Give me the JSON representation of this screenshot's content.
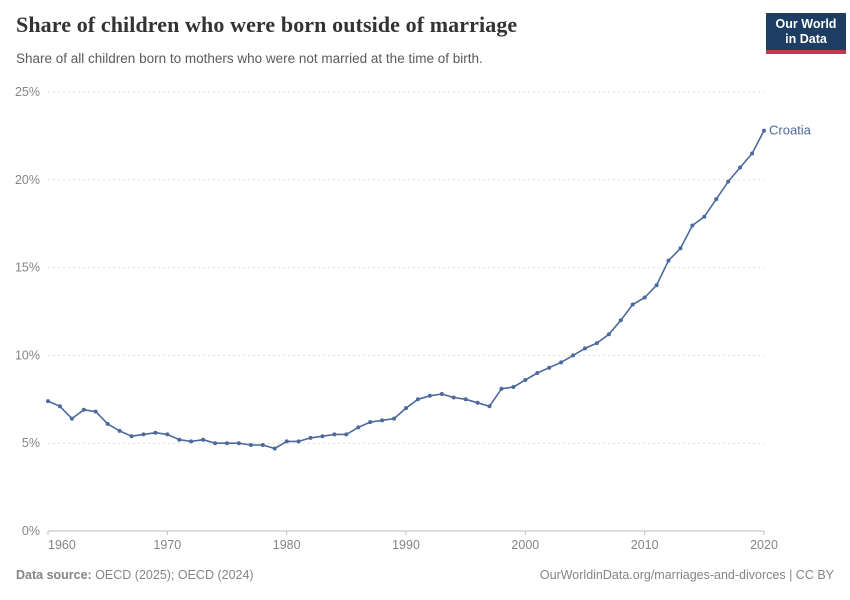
{
  "header": {
    "title": "Share of children who were born outside of marriage",
    "subtitle": "Share of all children born to mothers who were not married at the time of birth.",
    "logo": {
      "line1": "Our World",
      "line2": "in Data"
    }
  },
  "chart_data": {
    "type": "line",
    "title": "Share of children who were born outside of marriage",
    "entity_label": "Croatia",
    "xlabel": "",
    "ylabel": "",
    "xlim": [
      1960,
      2020
    ],
    "ylim": [
      0,
      25
    ],
    "grid": "horizontal dashed gridlines on",
    "legend_position": "end-of-line label",
    "xtick_values": [
      1960,
      1970,
      1980,
      1990,
      2000,
      2010,
      2020
    ],
    "xtick_labels": [
      "1960",
      "1970",
      "1980",
      "1990",
      "2000",
      "2010",
      "2020"
    ],
    "ytick_values": [
      0,
      5,
      10,
      15,
      20,
      25
    ],
    "ytick_labels": [
      "0%",
      "5%",
      "10%",
      "15%",
      "20%",
      "25%"
    ],
    "years": [
      1960,
      1961,
      1962,
      1963,
      1964,
      1965,
      1966,
      1967,
      1968,
      1969,
      1970,
      1971,
      1972,
      1973,
      1974,
      1975,
      1976,
      1977,
      1978,
      1979,
      1980,
      1981,
      1982,
      1983,
      1984,
      1985,
      1986,
      1987,
      1988,
      1989,
      1990,
      1991,
      1992,
      1993,
      1994,
      1995,
      1996,
      1997,
      1998,
      1999,
      2000,
      2001,
      2002,
      2003,
      2004,
      2005,
      2006,
      2007,
      2008,
      2009,
      2010,
      2011,
      2012,
      2013,
      2014,
      2015,
      2016,
      2017,
      2018,
      2019,
      2020
    ],
    "series": [
      {
        "name": "Croatia",
        "values": [
          7.4,
          7.1,
          6.4,
          6.9,
          6.8,
          6.1,
          5.7,
          5.4,
          5.5,
          5.6,
          5.5,
          5.2,
          5.1,
          5.2,
          5.0,
          5.0,
          5.0,
          4.9,
          4.9,
          4.7,
          5.1,
          5.1,
          5.3,
          5.4,
          5.5,
          5.5,
          5.9,
          6.2,
          6.3,
          6.4,
          7.0,
          7.5,
          7.7,
          7.8,
          7.6,
          7.5,
          7.3,
          7.1,
          8.1,
          8.2,
          8.6,
          9.0,
          9.3,
          9.6,
          10.0,
          10.4,
          10.7,
          11.2,
          12.0,
          12.9,
          13.3,
          14.0,
          15.4,
          16.1,
          17.4,
          17.9,
          18.9,
          19.9,
          20.7,
          21.5,
          22.8
        ]
      }
    ]
  },
  "colors": {
    "line": "#4C6A9C",
    "entity_label": "#4C6A9C",
    "gridline": "#dcdcdc",
    "axis": "#bdbdbd",
    "tick_text": "#858585",
    "logo_bg": "#1d3d63",
    "logo_bar": "#c43745"
  },
  "footer": {
    "datasource_label": "Data source:",
    "datasource_value": " OECD (2025); OECD (2024)",
    "url_text": "OurWorldinData.org/marriages-and-divorces",
    "license_suffix": " | CC BY"
  }
}
